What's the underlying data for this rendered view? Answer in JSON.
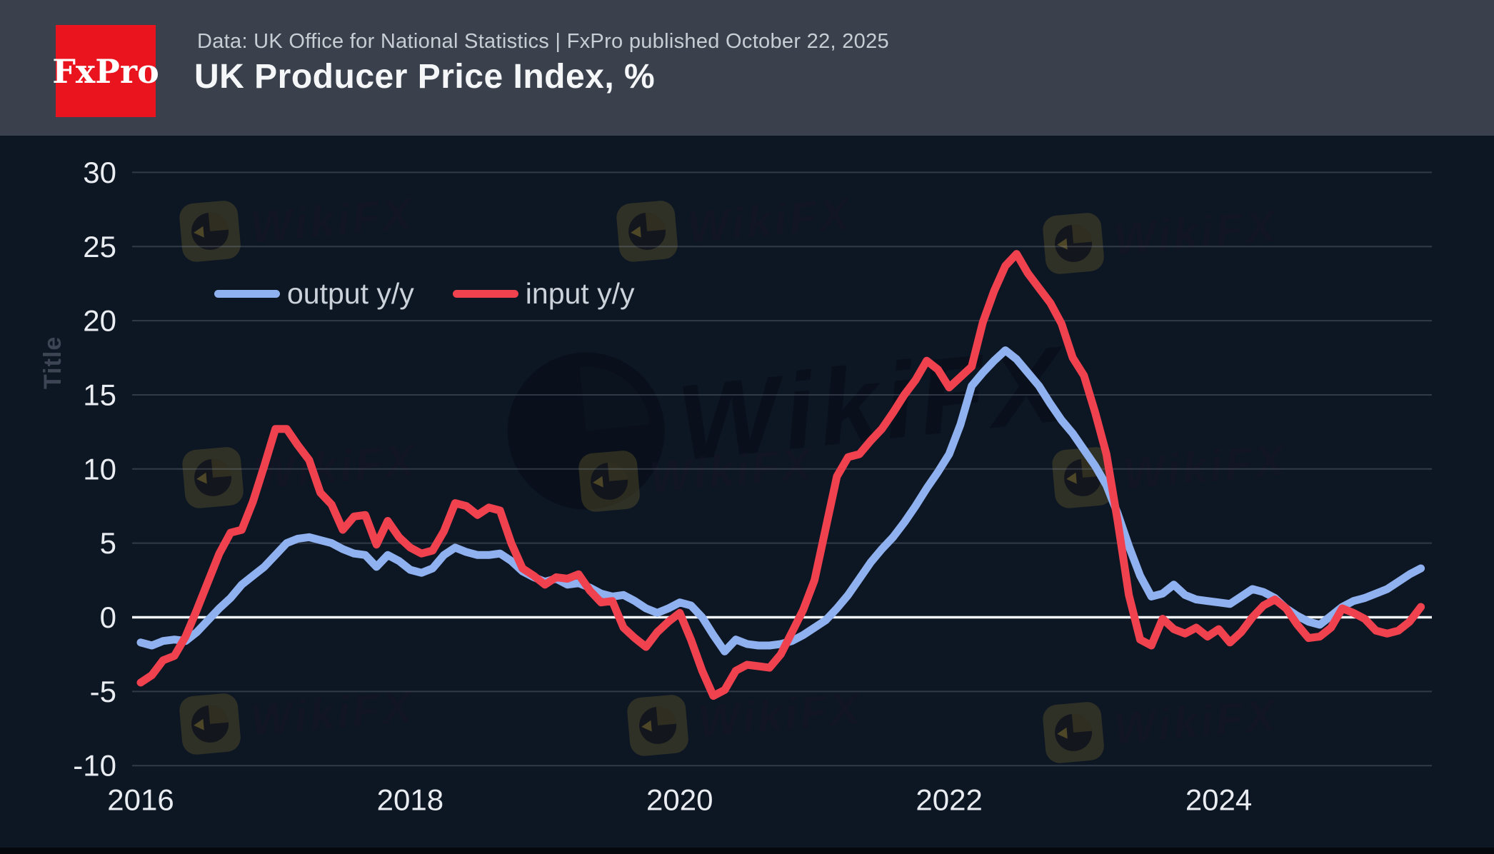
{
  "header": {
    "logo_text": "FxPro",
    "source_line": "Data: UK Office for National Statistics | FxPro published October 22, 2025",
    "title": "UK Producer Price Index, %"
  },
  "legend": {
    "items": [
      {
        "label": "output y/y",
        "color": "#8fb1f0"
      },
      {
        "label": "input y/y",
        "color": "#f0414e"
      }
    ]
  },
  "y_axis_title": "Title",
  "watermark_brand": "WikiFX",
  "colors": {
    "background": "#0d1623",
    "header_background": "#3a414d",
    "brand_red": "#e9141d",
    "output_line": "#8fb1f0",
    "input_line": "#f0414e",
    "axis_text": "#e9ecf0",
    "zero_line": "#f2f5f8",
    "gridline": "rgba(155,165,180,0.26)"
  },
  "chart_data": {
    "type": "line",
    "title": "UK Producer Price Index, %",
    "frequency": "monthly",
    "x_start": "2016-01",
    "x_end": "2025-07",
    "x_tick_labels": [
      "2016",
      "2018",
      "2020",
      "2022",
      "2024"
    ],
    "y_ticks": [
      30,
      25,
      20,
      15,
      10,
      5,
      0,
      -5,
      -10
    ],
    "ylim": [
      -11.5,
      31.5
    ],
    "grid": "horizontal",
    "zero_line": true,
    "legend_position": "top-left-inside",
    "series": [
      {
        "name": "output y/y",
        "color": "#8fb1f0",
        "values": [
          -1.7,
          -1.9,
          -1.6,
          -1.5,
          -1.6,
          -1.0,
          -0.2,
          0.6,
          1.3,
          2.2,
          2.8,
          3.4,
          4.2,
          5.0,
          5.3,
          5.4,
          5.2,
          5.0,
          4.6,
          4.3,
          4.2,
          3.4,
          4.2,
          3.8,
          3.2,
          3.0,
          3.3,
          4.2,
          4.7,
          4.4,
          4.2,
          4.2,
          4.3,
          3.8,
          3.1,
          2.7,
          2.4,
          2.6,
          2.2,
          2.3,
          2.0,
          1.6,
          1.4,
          1.5,
          1.1,
          0.6,
          0.3,
          0.6,
          1.0,
          0.8,
          0.0,
          -1.2,
          -2.3,
          -1.5,
          -1.8,
          -1.9,
          -1.9,
          -1.8,
          -1.6,
          -1.2,
          -0.7,
          -0.2,
          0.6,
          1.5,
          2.6,
          3.7,
          4.6,
          5.4,
          6.4,
          7.5,
          8.7,
          9.8,
          11.0,
          13.0,
          15.6,
          16.5,
          17.3,
          18.0,
          17.4,
          16.5,
          15.6,
          14.4,
          13.3,
          12.4,
          11.3,
          10.2,
          8.9,
          7.0,
          4.8,
          2.8,
          1.4,
          1.6,
          2.2,
          1.5,
          1.2,
          1.1,
          1.0,
          0.9,
          1.4,
          1.9,
          1.7,
          1.3,
          0.6,
          0.1,
          -0.3,
          -0.5,
          0.1,
          0.7,
          1.1,
          1.3,
          1.6,
          1.9,
          2.4,
          2.9,
          3.3
        ]
      },
      {
        "name": "input y/y",
        "color": "#f0414e",
        "values": [
          -4.4,
          -3.9,
          -2.9,
          -2.6,
          -1.3,
          0.5,
          2.4,
          4.3,
          5.7,
          5.9,
          7.8,
          10.2,
          12.7,
          12.7,
          11.6,
          10.6,
          8.4,
          7.6,
          5.9,
          6.8,
          6.9,
          4.9,
          6.5,
          5.4,
          4.7,
          4.3,
          4.5,
          5.8,
          7.7,
          7.5,
          6.9,
          7.4,
          7.2,
          5.0,
          3.3,
          2.8,
          2.2,
          2.7,
          2.6,
          2.9,
          1.8,
          1.0,
          1.1,
          -0.7,
          -1.4,
          -2.0,
          -1.0,
          -0.3,
          0.3,
          -1.5,
          -3.6,
          -5.3,
          -4.9,
          -3.6,
          -3.2,
          -3.3,
          -3.4,
          -2.5,
          -1.0,
          0.5,
          2.5,
          6.0,
          9.5,
          10.8,
          11.0,
          11.9,
          12.7,
          13.8,
          15.0,
          16.0,
          17.3,
          16.7,
          15.5,
          16.2,
          16.9,
          19.9,
          22.0,
          23.7,
          24.5,
          23.2,
          22.2,
          21.2,
          19.8,
          17.5,
          16.3,
          13.8,
          11.0,
          6.5,
          1.5,
          -1.5,
          -1.9,
          -0.1,
          -0.8,
          -1.1,
          -0.7,
          -1.3,
          -0.8,
          -1.7,
          -1.0,
          0.0,
          0.8,
          1.2,
          0.6,
          -0.5,
          -1.4,
          -1.3,
          -0.7,
          0.6,
          0.3,
          -0.1,
          -0.9,
          -1.1,
          -0.9,
          -0.3,
          0.7
        ]
      }
    ]
  }
}
